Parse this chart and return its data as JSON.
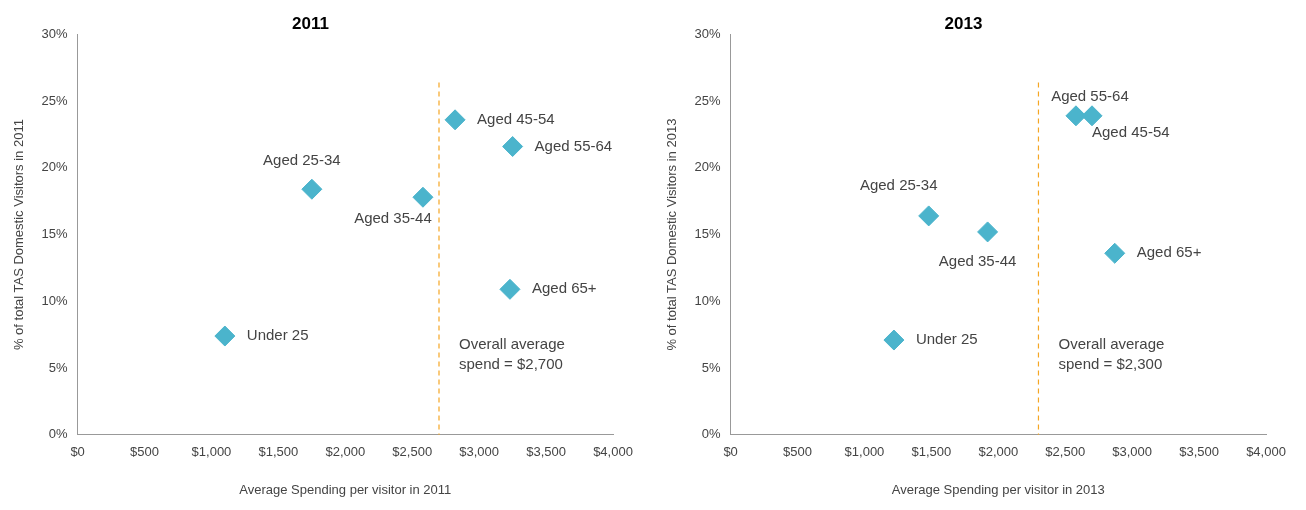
{
  "chart_data": [
    {
      "type": "scatter",
      "title": "2011",
      "xlabel": "Average Spending per visitor in 2011",
      "ylabel": "% of total TAS Domestic Visitors in 2011",
      "marker": "diamond",
      "legend": false,
      "grid": false,
      "xlim": [
        0,
        4000
      ],
      "xticks": [
        {
          "value": 0,
          "label": "$0"
        },
        {
          "value": 500,
          "label": "$500"
        },
        {
          "value": 1000,
          "label": "$1,000"
        },
        {
          "value": 1500,
          "label": "$1,500"
        },
        {
          "value": 2000,
          "label": "$2,000"
        },
        {
          "value": 2500,
          "label": "$2,500"
        },
        {
          "value": 3000,
          "label": "$3,000"
        },
        {
          "value": 3500,
          "label": "$3,500"
        },
        {
          "value": 4000,
          "label": "$4,000"
        }
      ],
      "ylim": [
        0,
        30
      ],
      "yticks": [
        {
          "value": 0,
          "label": "0%"
        },
        {
          "value": 5,
          "label": "5%"
        },
        {
          "value": 10,
          "label": "10%"
        },
        {
          "value": 15,
          "label": "15%"
        },
        {
          "value": 20,
          "label": "20%"
        },
        {
          "value": 25,
          "label": "25%"
        },
        {
          "value": 30,
          "label": "30%"
        }
      ],
      "series": [
        {
          "name": "Under 25",
          "color": "#4bb4cc",
          "x": [
            1100
          ],
          "values": [
            7.4
          ]
        },
        {
          "name": "Aged 25-34",
          "color": "#4bb4cc",
          "x": [
            1750
          ],
          "values": [
            18.4
          ]
        },
        {
          "name": "Aged 35-44",
          "color": "#4bb4cc",
          "x": [
            2580
          ],
          "values": [
            17.8
          ]
        },
        {
          "name": "Aged 45-54",
          "color": "#4bb4cc",
          "x": [
            2820
          ],
          "values": [
            23.6
          ]
        },
        {
          "name": "Aged 55-64",
          "color": "#4bb4cc",
          "x": [
            3250
          ],
          "values": [
            21.6
          ]
        },
        {
          "name": "Aged 65+",
          "color": "#4bb4cc",
          "x": [
            3230
          ],
          "values": [
            10.9
          ]
        }
      ],
      "ref_lines": [
        {
          "axis": "x",
          "value": 2700,
          "label": "Overall average spend = $2,700",
          "color": "#f5a623",
          "line_style": "dashed"
        }
      ]
    },
    {
      "type": "scatter",
      "title": "2013",
      "xlabel": "Average Spending per visitor in 2013",
      "ylabel": "% of total TAS Domestic Visitors in 2013",
      "marker": "diamond",
      "legend": false,
      "grid": false,
      "xlim": [
        0,
        4000
      ],
      "xticks": [
        {
          "value": 0,
          "label": "$0"
        },
        {
          "value": 500,
          "label": "$500"
        },
        {
          "value": 1000,
          "label": "$1,000"
        },
        {
          "value": 1500,
          "label": "$1,500"
        },
        {
          "value": 2000,
          "label": "$2,000"
        },
        {
          "value": 2500,
          "label": "$2,500"
        },
        {
          "value": 3000,
          "label": "$3,000"
        },
        {
          "value": 3500,
          "label": "$3,500"
        },
        {
          "value": 4000,
          "label": "$4,000"
        }
      ],
      "ylim": [
        0,
        30
      ],
      "yticks": [
        {
          "value": 0,
          "label": "0%"
        },
        {
          "value": 5,
          "label": "5%"
        },
        {
          "value": 10,
          "label": "10%"
        },
        {
          "value": 15,
          "label": "15%"
        },
        {
          "value": 20,
          "label": "20%"
        },
        {
          "value": 25,
          "label": "25%"
        },
        {
          "value": 30,
          "label": "30%"
        }
      ],
      "series": [
        {
          "name": "Under 25",
          "color": "#4bb4cc",
          "x": [
            1220
          ],
          "values": [
            7.1
          ]
        },
        {
          "name": "Aged 25-34",
          "color": "#4bb4cc",
          "x": [
            1480
          ],
          "values": [
            16.4
          ]
        },
        {
          "name": "Aged 35-44",
          "color": "#4bb4cc",
          "x": [
            1920
          ],
          "values": [
            15.2
          ]
        },
        {
          "name": "Aged 45-54",
          "color": "#4bb4cc",
          "x": [
            2700
          ],
          "values": [
            23.9
          ]
        },
        {
          "name": "Aged 55-64",
          "color": "#4bb4cc",
          "x": [
            2580
          ],
          "values": [
            23.9
          ]
        },
        {
          "name": "Aged 65+",
          "color": "#4bb4cc",
          "x": [
            2870
          ],
          "values": [
            13.6
          ]
        }
      ],
      "ref_lines": [
        {
          "axis": "x",
          "value": 2300,
          "label": "Overall average spend = $2,300",
          "color": "#f5a623",
          "line_style": "dashed"
        }
      ]
    }
  ]
}
